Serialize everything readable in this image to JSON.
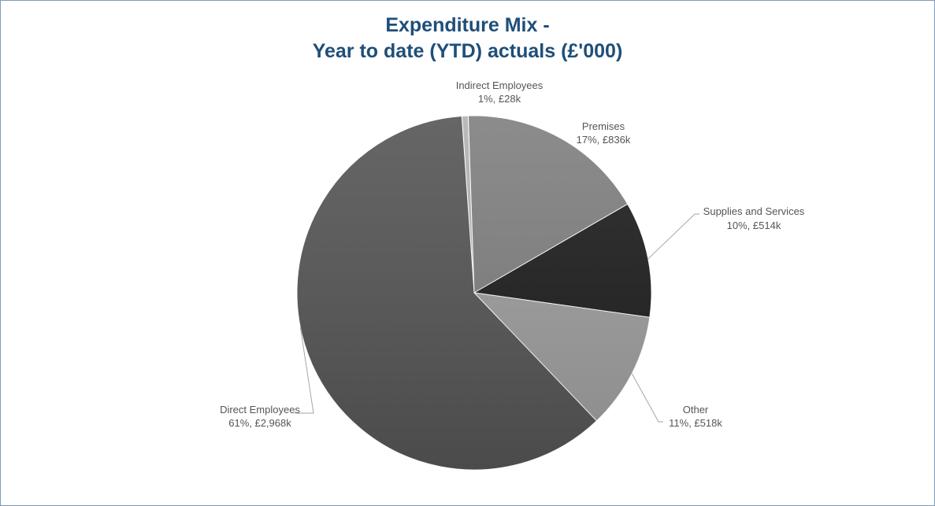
{
  "chart_data": {
    "type": "pie",
    "title_line1": "Expenditure Mix -",
    "title_line2": "Year to date (YTD) actuals (£'000)",
    "slices": [
      {
        "name": "Indirect Employees",
        "label": "1%, £28k",
        "value": 28,
        "color": "#b3b3b3"
      },
      {
        "name": "Premises",
        "label": "17%, £836k",
        "value": 836,
        "color": "#7f7f7f"
      },
      {
        "name": "Supplies and Services",
        "label": "10%, £514k",
        "value": 514,
        "color": "#1e1e1e"
      },
      {
        "name": "Other",
        "label": "11%, £518k",
        "value": 518,
        "color": "#9d9d9d"
      },
      {
        "name": "Direct Employees",
        "label": "61%, £2,968k",
        "value": 2968,
        "color": "#555555"
      }
    ],
    "start_angle_deg": -4,
    "legend": "none"
  }
}
